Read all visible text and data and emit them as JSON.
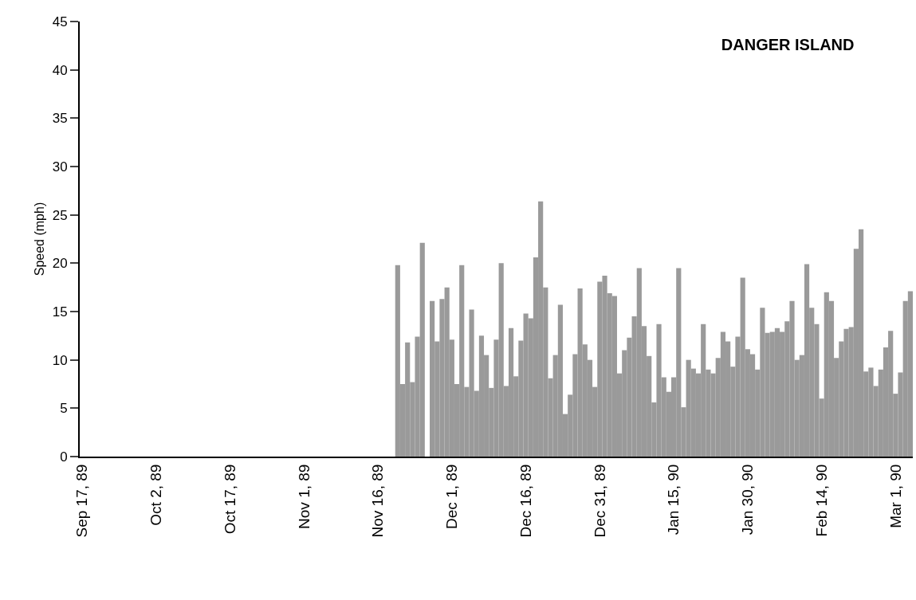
{
  "chart_data": {
    "type": "bar",
    "title": "DANGER ISLAND",
    "ylabel": "Speed (mph)",
    "x": [
      "1989-11-20",
      "1989-11-21",
      "1989-11-22",
      "1989-11-23",
      "1989-11-24",
      "1989-11-25",
      "1989-11-26",
      "1989-11-27",
      "1989-11-28",
      "1989-11-29",
      "1989-11-30",
      "1989-12-01",
      "1989-12-02",
      "1989-12-03",
      "1989-12-04",
      "1989-12-05",
      "1989-12-06",
      "1989-12-07",
      "1989-12-08",
      "1989-12-09",
      "1989-12-10",
      "1989-12-11",
      "1989-12-12",
      "1989-12-13",
      "1989-12-14",
      "1989-12-15",
      "1989-12-16",
      "1989-12-17",
      "1989-12-18",
      "1989-12-19",
      "1989-12-20",
      "1989-12-21",
      "1989-12-22",
      "1989-12-23",
      "1989-12-24",
      "1989-12-25",
      "1989-12-26",
      "1989-12-27",
      "1989-12-28",
      "1989-12-29",
      "1989-12-30",
      "1989-12-31",
      "1990-01-01",
      "1990-01-02",
      "1990-01-03",
      "1990-01-04",
      "1990-01-05",
      "1990-01-06",
      "1990-01-07",
      "1990-01-08",
      "1990-01-09",
      "1990-01-10",
      "1990-01-11",
      "1990-01-12",
      "1990-01-13",
      "1990-01-14",
      "1990-01-15",
      "1990-01-16",
      "1990-01-17",
      "1990-01-18",
      "1990-01-19",
      "1990-01-20",
      "1990-01-21",
      "1990-01-22",
      "1990-01-23",
      "1990-01-24",
      "1990-01-25",
      "1990-01-26",
      "1990-01-27",
      "1990-01-28",
      "1990-01-29",
      "1990-01-30",
      "1990-01-31",
      "1990-02-01",
      "1990-02-02",
      "1990-02-03",
      "1990-02-04",
      "1990-02-05",
      "1990-02-06",
      "1990-02-07",
      "1990-02-08",
      "1990-02-09",
      "1990-02-10",
      "1990-02-11",
      "1990-02-12",
      "1990-02-13",
      "1990-02-14",
      "1990-02-15",
      "1990-02-16",
      "1990-02-17",
      "1990-02-18",
      "1990-02-19",
      "1990-02-20",
      "1990-02-21",
      "1990-02-22",
      "1990-02-23",
      "1990-02-24",
      "1990-02-25",
      "1990-02-26",
      "1990-02-27",
      "1990-02-28",
      "1990-03-01",
      "1990-03-02",
      "1990-03-03",
      "1990-03-04"
    ],
    "values": [
      19.8,
      7.5,
      11.8,
      7.7,
      12.4,
      22.1,
      0,
      16.1,
      11.9,
      16.3,
      17.5,
      12.1,
      7.5,
      19.8,
      7.2,
      15.2,
      6.8,
      12.5,
      10.5,
      7.1,
      12.1,
      20.0,
      7.3,
      13.3,
      8.3,
      12.0,
      14.8,
      14.3,
      20.6,
      26.4,
      17.5,
      8.1,
      10.5,
      15.7,
      4.4,
      6.4,
      10.6,
      17.4,
      11.6,
      10.0,
      7.2,
      18.1,
      18.7,
      16.9,
      16.6,
      8.6,
      11.0,
      12.3,
      14.5,
      19.5,
      13.5,
      10.4,
      5.6,
      13.7,
      8.2,
      6.7,
      8.2,
      19.5,
      5.1,
      10.0,
      9.1,
      8.6,
      13.7,
      9.0,
      8.6,
      10.2,
      12.9,
      11.9,
      9.3,
      12.4,
      18.5,
      11.1,
      10.6,
      9.0,
      15.4,
      12.8,
      12.9,
      13.3,
      12.9,
      14.0,
      16.1,
      10.0,
      10.5,
      19.9,
      15.4,
      13.7,
      6.0,
      17.0,
      16.1,
      10.2,
      11.9,
      13.2,
      13.4,
      21.5,
      23.5,
      8.8,
      9.2,
      7.3,
      9.0,
      11.3,
      13.0,
      6.5,
      8.7,
      16.1,
      17.1
    ],
    "color": "#9a9a9a",
    "xlim": [
      "1989-09-16T12:00",
      "1990-03-04T12:00"
    ],
    "xticks": [
      {
        "value": "1989-09-17",
        "label": "Sep 17, 89"
      },
      {
        "value": "1989-10-02",
        "label": "Oct 2, 89"
      },
      {
        "value": "1989-10-17",
        "label": "Oct 17, 89"
      },
      {
        "value": "1989-11-01",
        "label": "Nov 1, 89"
      },
      {
        "value": "1989-11-16",
        "label": "Nov 16, 89"
      },
      {
        "value": "1989-12-01",
        "label": "Dec 1, 89"
      },
      {
        "value": "1989-12-16",
        "label": "Dec 16, 89"
      },
      {
        "value": "1989-12-31",
        "label": "Dec 31, 89"
      },
      {
        "value": "1990-01-15",
        "label": "Jan 15, 90"
      },
      {
        "value": "1990-01-30",
        "label": "Jan 30, 90"
      },
      {
        "value": "1990-02-14",
        "label": "Feb 14, 90"
      },
      {
        "value": "1990-03-01",
        "label": "Mar 1, 90"
      }
    ],
    "ylim": [
      0,
      45
    ],
    "yticks": [
      0,
      5,
      10,
      15,
      20,
      25,
      30,
      35,
      40,
      45
    ]
  }
}
